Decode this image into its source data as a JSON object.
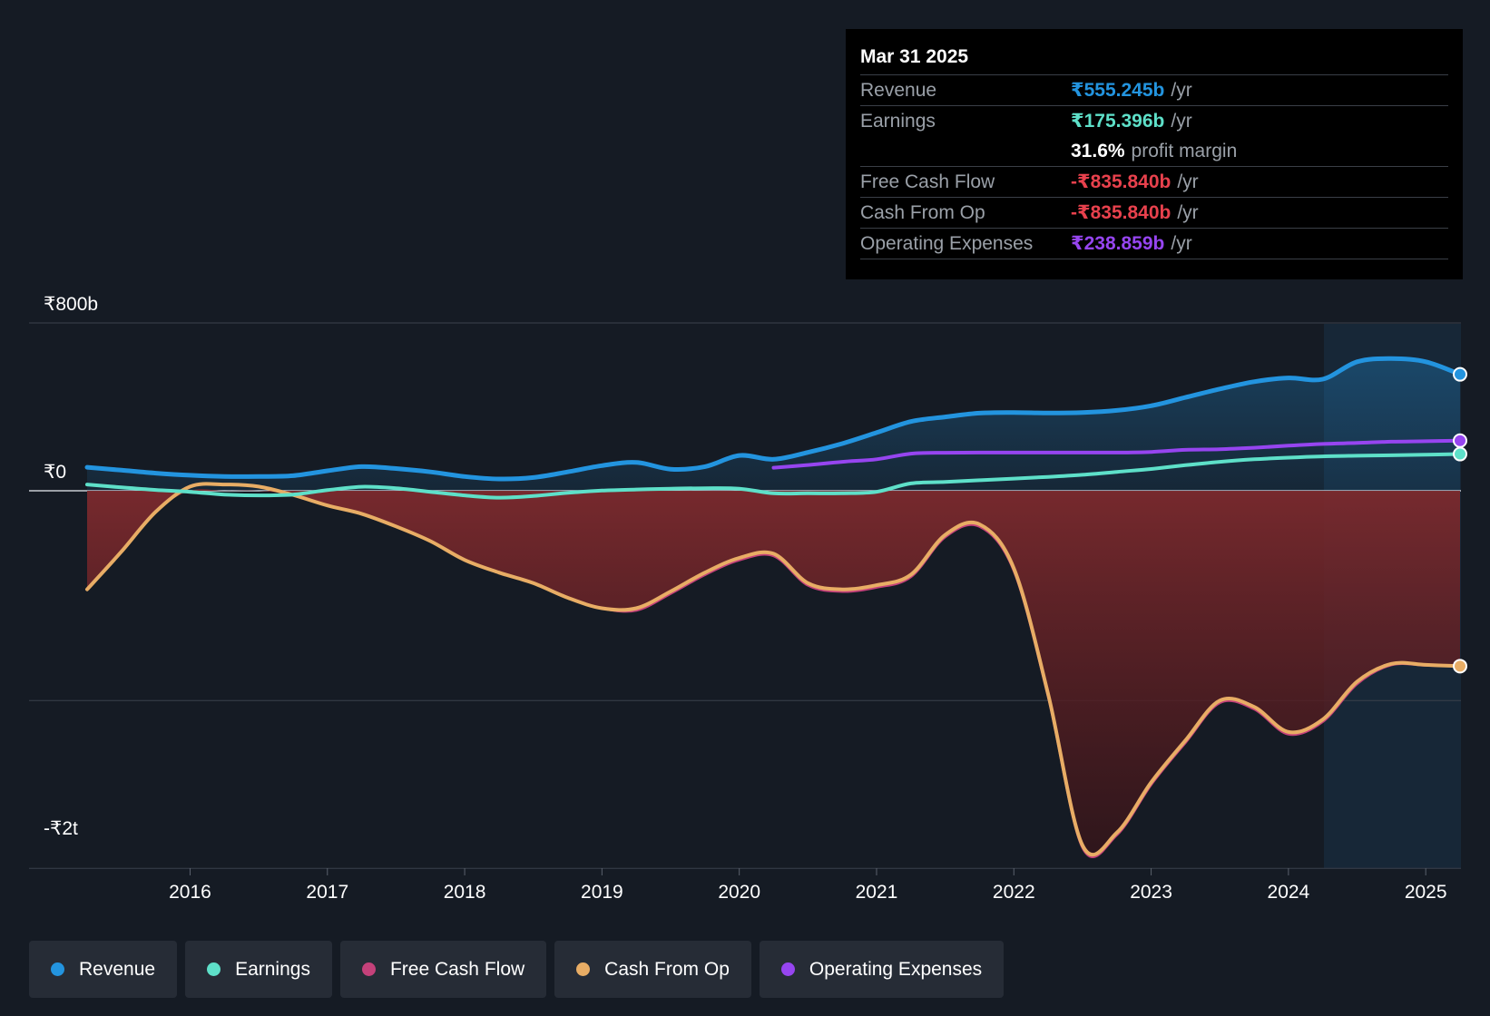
{
  "colors": {
    "background": "#151b24",
    "revenue": "#2394df",
    "earnings": "#5ee0c9",
    "free_cash_flow": "#c4417a",
    "cash_from_op": "#e8ad65",
    "operating_expenses": "#9645f0",
    "negative_fill": "#7c2a2e"
  },
  "tooltip": {
    "date": "Mar 31 2025",
    "rows": [
      {
        "label": "Revenue",
        "value": "₹555.245b",
        "unit": "/yr"
      },
      {
        "label": "Earnings",
        "value": "₹175.396b",
        "unit": "/yr"
      },
      {
        "label": "",
        "value": "31.6%",
        "unit": "profit margin"
      },
      {
        "label": "Free Cash Flow",
        "value": "-₹835.840b",
        "unit": "/yr"
      },
      {
        "label": "Cash From Op",
        "value": "-₹835.840b",
        "unit": "/yr"
      },
      {
        "label": "Operating Expenses",
        "value": "₹238.859b",
        "unit": "/yr"
      }
    ]
  },
  "legend": [
    {
      "label": "Revenue",
      "color": "#2394df"
    },
    {
      "label": "Earnings",
      "color": "#5ee0c9"
    },
    {
      "label": "Free Cash Flow",
      "color": "#c4417a"
    },
    {
      "label": "Cash From Op",
      "color": "#e8ad65"
    },
    {
      "label": "Operating Expenses",
      "color": "#9645f0"
    }
  ],
  "chart_data": {
    "type": "line",
    "title": "",
    "xlabel": "",
    "ylabel": "",
    "ylim": [
      -1800,
      800
    ],
    "y_tick_labels": [
      {
        "value": 800,
        "label": "₹800b"
      },
      {
        "value": 0,
        "label": "₹0"
      },
      {
        "value": -1700,
        "label": "-₹2t"
      }
    ],
    "gridlines": [
      800,
      0,
      -1000,
      -1800
    ],
    "xlim": [
      2015.25,
      2025.25
    ],
    "x_ticks": [
      2016,
      2017,
      2018,
      2019,
      2020,
      2021,
      2022,
      2023,
      2024,
      2025
    ],
    "x_tick_labels": [
      "2016",
      "2017",
      "2018",
      "2019",
      "2020",
      "2021",
      "2022",
      "2023",
      "2024",
      "2025"
    ],
    "forecast_region_start": 2024.25,
    "series": [
      {
        "name": "Revenue",
        "key": "revenue",
        "points": [
          [
            2015.25,
            112
          ],
          [
            2015.5,
            98
          ],
          [
            2015.75,
            84
          ],
          [
            2016,
            74
          ],
          [
            2016.25,
            68
          ],
          [
            2016.5,
            68
          ],
          [
            2016.75,
            72
          ],
          [
            2017,
            95
          ],
          [
            2017.25,
            115
          ],
          [
            2017.5,
            106
          ],
          [
            2017.75,
            90
          ],
          [
            2018,
            68
          ],
          [
            2018.25,
            56
          ],
          [
            2018.5,
            63
          ],
          [
            2018.75,
            90
          ],
          [
            2019,
            120
          ],
          [
            2019.25,
            135
          ],
          [
            2019.5,
            103
          ],
          [
            2019.75,
            115
          ],
          [
            2020,
            168
          ],
          [
            2020.25,
            150
          ],
          [
            2020.5,
            183
          ],
          [
            2020.75,
            225
          ],
          [
            2021,
            277
          ],
          [
            2021.25,
            330
          ],
          [
            2021.5,
            352
          ],
          [
            2021.75,
            370
          ],
          [
            2022,
            373
          ],
          [
            2022.25,
            371
          ],
          [
            2022.5,
            373
          ],
          [
            2022.75,
            383
          ],
          [
            2023,
            405
          ],
          [
            2023.25,
            445
          ],
          [
            2023.5,
            485
          ],
          [
            2023.75,
            520
          ],
          [
            2024,
            538
          ],
          [
            2024.25,
            532
          ],
          [
            2024.5,
            615
          ],
          [
            2024.75,
            630
          ],
          [
            2025,
            615
          ],
          [
            2025.25,
            555
          ]
        ]
      },
      {
        "name": "Earnings",
        "key": "earnings",
        "points": [
          [
            2015.25,
            30
          ],
          [
            2015.5,
            16
          ],
          [
            2015.75,
            4
          ],
          [
            2016,
            -5
          ],
          [
            2016.25,
            -18
          ],
          [
            2016.5,
            -22
          ],
          [
            2016.75,
            -18
          ],
          [
            2017,
            3
          ],
          [
            2017.25,
            19
          ],
          [
            2017.5,
            12
          ],
          [
            2017.75,
            -5
          ],
          [
            2018,
            -22
          ],
          [
            2018.25,
            -33
          ],
          [
            2018.5,
            -25
          ],
          [
            2018.75,
            -10
          ],
          [
            2019,
            1
          ],
          [
            2019.25,
            6
          ],
          [
            2019.5,
            10
          ],
          [
            2019.75,
            12
          ],
          [
            2020,
            10
          ],
          [
            2020.25,
            -12
          ],
          [
            2020.5,
            -12
          ],
          [
            2020.75,
            -12
          ],
          [
            2021,
            -5
          ],
          [
            2021.25,
            35
          ],
          [
            2021.5,
            42
          ],
          [
            2021.75,
            50
          ],
          [
            2022,
            58
          ],
          [
            2022.25,
            66
          ],
          [
            2022.5,
            76
          ],
          [
            2022.75,
            90
          ],
          [
            2023,
            104
          ],
          [
            2023.25,
            122
          ],
          [
            2023.5,
            138
          ],
          [
            2023.75,
            150
          ],
          [
            2024,
            158
          ],
          [
            2024.25,
            164
          ],
          [
            2024.5,
            167
          ],
          [
            2024.75,
            169
          ],
          [
            2025,
            172
          ],
          [
            2025.25,
            175
          ]
        ]
      },
      {
        "name": "Free Cash Flow",
        "key": "free_cash_flow",
        "points": [
          [
            2015.25,
            -470
          ],
          [
            2015.5,
            -290
          ],
          [
            2015.75,
            -100
          ],
          [
            2016,
            20
          ],
          [
            2016.25,
            30
          ],
          [
            2016.5,
            20
          ],
          [
            2016.75,
            -20
          ],
          [
            2017,
            -70
          ],
          [
            2017.25,
            -110
          ],
          [
            2017.5,
            -170
          ],
          [
            2017.75,
            -240
          ],
          [
            2018,
            -330
          ],
          [
            2018.25,
            -390
          ],
          [
            2018.5,
            -440
          ],
          [
            2018.75,
            -510
          ],
          [
            2019,
            -560
          ],
          [
            2019.25,
            -570
          ],
          [
            2019.5,
            -490
          ],
          [
            2019.75,
            -400
          ],
          [
            2020,
            -330
          ],
          [
            2020.25,
            -310
          ],
          [
            2020.5,
            -450
          ],
          [
            2020.75,
            -480
          ],
          [
            2021,
            -460
          ],
          [
            2021.25,
            -410
          ],
          [
            2021.5,
            -220
          ],
          [
            2021.75,
            -170
          ],
          [
            2022,
            -380
          ],
          [
            2022.25,
            -980
          ],
          [
            2022.5,
            -1700
          ],
          [
            2022.75,
            -1640
          ],
          [
            2023,
            -1400
          ],
          [
            2023.25,
            -1200
          ],
          [
            2023.5,
            -1010
          ],
          [
            2023.75,
            -1040
          ],
          [
            2024,
            -1160
          ],
          [
            2024.25,
            -1100
          ],
          [
            2024.5,
            -920
          ],
          [
            2024.75,
            -830
          ],
          [
            2025,
            -832
          ],
          [
            2025.25,
            -836
          ]
        ]
      },
      {
        "name": "Cash From Op",
        "key": "cash_from_op",
        "points": [
          [
            2015.25,
            -470
          ],
          [
            2015.5,
            -290
          ],
          [
            2015.75,
            -100
          ],
          [
            2016,
            20
          ],
          [
            2016.25,
            30
          ],
          [
            2016.5,
            20
          ],
          [
            2016.75,
            -20
          ],
          [
            2017,
            -70
          ],
          [
            2017.25,
            -110
          ],
          [
            2017.5,
            -170
          ],
          [
            2017.75,
            -240
          ],
          [
            2018,
            -330
          ],
          [
            2018.25,
            -390
          ],
          [
            2018.5,
            -440
          ],
          [
            2018.75,
            -510
          ],
          [
            2019,
            -560
          ],
          [
            2019.25,
            -560
          ],
          [
            2019.5,
            -480
          ],
          [
            2019.75,
            -390
          ],
          [
            2020,
            -320
          ],
          [
            2020.25,
            -300
          ],
          [
            2020.5,
            -440
          ],
          [
            2020.75,
            -470
          ],
          [
            2021,
            -450
          ],
          [
            2021.25,
            -400
          ],
          [
            2021.5,
            -210
          ],
          [
            2021.75,
            -160
          ],
          [
            2022,
            -370
          ],
          [
            2022.25,
            -970
          ],
          [
            2022.5,
            -1690
          ],
          [
            2022.75,
            -1630
          ],
          [
            2023,
            -1390
          ],
          [
            2023.25,
            -1190
          ],
          [
            2023.5,
            -1000
          ],
          [
            2023.75,
            -1030
          ],
          [
            2024,
            -1150
          ],
          [
            2024.25,
            -1090
          ],
          [
            2024.5,
            -910
          ],
          [
            2024.75,
            -825
          ],
          [
            2025,
            -830
          ],
          [
            2025.25,
            -836
          ]
        ]
      },
      {
        "name": "Operating Expenses",
        "key": "operating_expenses",
        "points": [
          [
            2020.25,
            110
          ],
          [
            2020.5,
            123
          ],
          [
            2020.75,
            138
          ],
          [
            2021,
            150
          ],
          [
            2021.25,
            177
          ],
          [
            2021.5,
            181
          ],
          [
            2021.75,
            182
          ],
          [
            2022,
            182
          ],
          [
            2022.25,
            182
          ],
          [
            2022.5,
            182
          ],
          [
            2022.75,
            182
          ],
          [
            2023,
            185
          ],
          [
            2023.25,
            195
          ],
          [
            2023.5,
            198
          ],
          [
            2023.75,
            205
          ],
          [
            2024,
            215
          ],
          [
            2024.25,
            223
          ],
          [
            2024.5,
            228
          ],
          [
            2024.75,
            234
          ],
          [
            2025,
            236
          ],
          [
            2025.25,
            239
          ]
        ]
      }
    ]
  }
}
